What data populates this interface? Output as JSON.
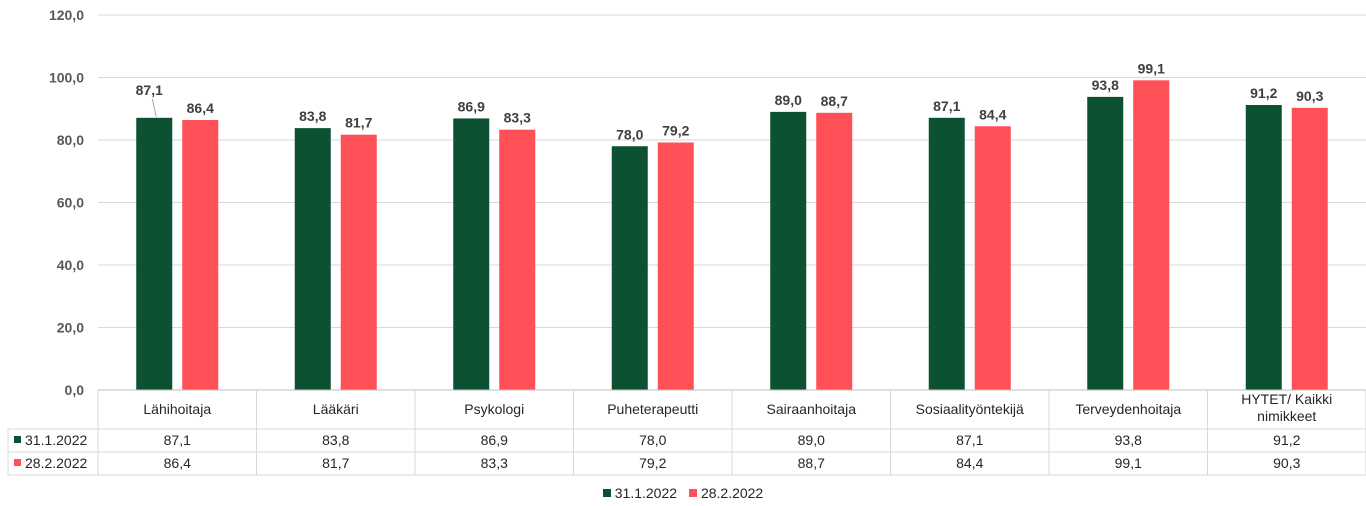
{
  "chart_data": {
    "type": "bar",
    "categories": [
      "Lähihoitaja",
      "Lääkäri",
      "Psykologi",
      "Puheterapeutti",
      "Sairaanhoitaja",
      "Sosiaalityöntekijä",
      "Terveydenhoitaja",
      "HYTET/ Kaikki nimikkeet"
    ],
    "series": [
      {
        "name": "31.1.2022",
        "color": "#0b5132",
        "values": [
          87.1,
          83.8,
          86.9,
          78.0,
          89.0,
          87.1,
          93.8,
          91.2
        ],
        "labels": [
          "87,1",
          "83,8",
          "86,9",
          "78,0",
          "89,0",
          "87,1",
          "93,8",
          "91,2"
        ]
      },
      {
        "name": "28.2.2022",
        "color": "#ff4f57",
        "values": [
          86.4,
          81.7,
          83.3,
          79.2,
          88.7,
          84.4,
          99.1,
          90.3
        ],
        "labels": [
          "86,4",
          "81,7",
          "83,3",
          "79,2",
          "88,7",
          "84,4",
          "99,1",
          "90,3"
        ]
      }
    ],
    "yticks": [
      "0,0",
      "20,0",
      "40,0",
      "60,0",
      "80,0",
      "100,0",
      "120,0"
    ],
    "ylim": [
      0,
      120
    ],
    "grid": true,
    "legend": "bottom-center",
    "data_table": true
  }
}
